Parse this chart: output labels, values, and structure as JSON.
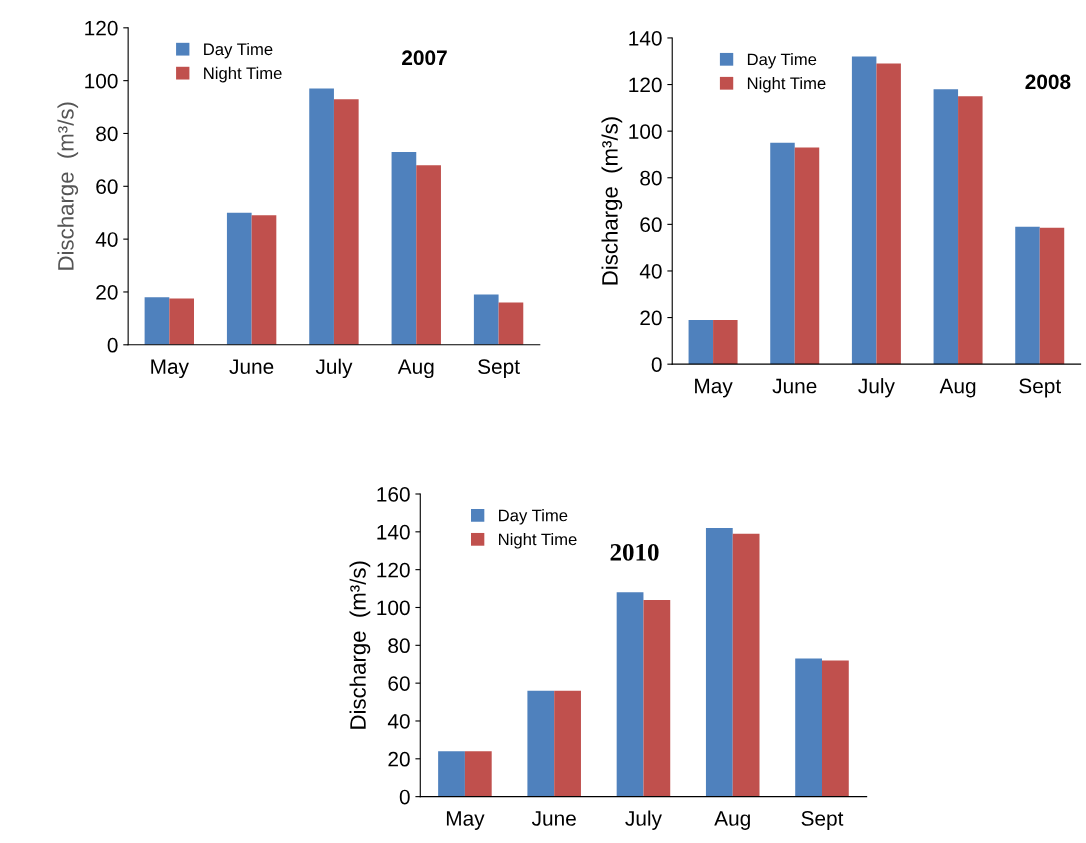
{
  "chart_data": [
    {
      "type": "bar",
      "title": "2007",
      "ylabel": "Discharge  (m³/s)",
      "categories": [
        "May",
        "June",
        "July",
        "Aug",
        "Sept"
      ],
      "ylim": [
        0,
        120
      ],
      "yticks": [
        0,
        20,
        40,
        60,
        80,
        100,
        120
      ],
      "legend": "top left",
      "grid": false,
      "series": [
        {
          "name": "Day Time",
          "color": "#4f81bd",
          "values": [
            18,
            50,
            97,
            73,
            19
          ]
        },
        {
          "name": "Night Time",
          "color": "#c0504d",
          "values": [
            17.5,
            49,
            93,
            68,
            16
          ]
        }
      ]
    },
    {
      "type": "bar",
      "title": "2008",
      "ylabel": "Discharge  (m³/s)",
      "categories": [
        "May",
        "June",
        "July",
        "Aug",
        "Sept"
      ],
      "ylim": [
        0,
        140
      ],
      "yticks": [
        0,
        20,
        40,
        60,
        80,
        100,
        120,
        140
      ],
      "legend": "top left",
      "grid": false,
      "series": [
        {
          "name": "Day Time",
          "color": "#4f81bd",
          "values": [
            19,
            95,
            132,
            118,
            59
          ]
        },
        {
          "name": "Night Time",
          "color": "#c0504d",
          "values": [
            19,
            93,
            129,
            115,
            58.5
          ]
        }
      ]
    },
    {
      "type": "bar",
      "title": "2010",
      "ylabel": "Discharge  (m³/s)",
      "categories": [
        "May",
        "June",
        "July",
        "Aug",
        "Sept"
      ],
      "ylim": [
        0,
        160
      ],
      "yticks": [
        0,
        20,
        40,
        60,
        80,
        100,
        120,
        140,
        160
      ],
      "legend": "top left",
      "grid": false,
      "series": [
        {
          "name": "Day Time",
          "color": "#4f81bd",
          "values": [
            24,
            56,
            108,
            142,
            73
          ]
        },
        {
          "name": "Night Time",
          "color": "#c0504d",
          "values": [
            24,
            56,
            104,
            139,
            72
          ]
        }
      ]
    }
  ]
}
